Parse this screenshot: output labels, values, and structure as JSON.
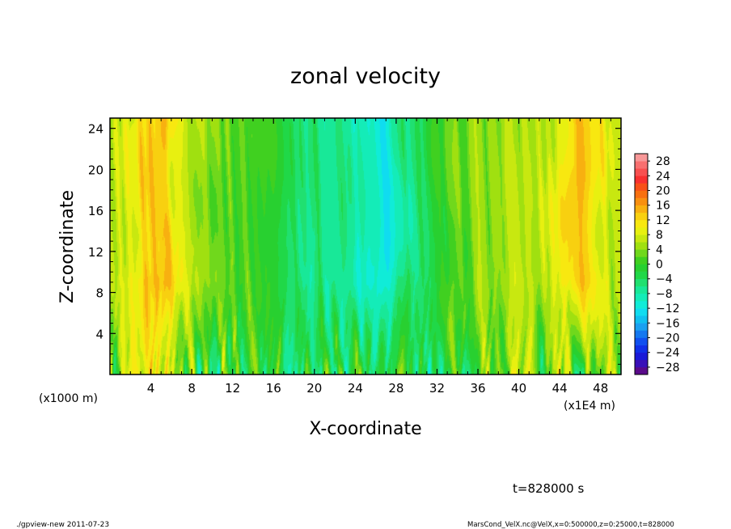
{
  "chart_data": {
    "type": "heatmap",
    "title": "zonal velocity",
    "xlabel": "X-coordinate",
    "ylabel": "Z-coordinate",
    "x_unit_left": "(x1000 m)",
    "x_unit_right": "(x1E4 m)",
    "xlim": [
      0,
      50
    ],
    "ylim": [
      0,
      25
    ],
    "x_ticks": [
      4,
      8,
      12,
      16,
      20,
      24,
      28,
      32,
      36,
      40,
      44,
      48
    ],
    "y_ticks": [
      4,
      8,
      12,
      16,
      20,
      24
    ],
    "colorbar": {
      "levels": [
        -30,
        -28,
        -26,
        -24,
        -22,
        -20,
        -18,
        -16,
        -14,
        -12,
        -10,
        -8,
        -6,
        -4,
        -2,
        0,
        2,
        4,
        6,
        8,
        10,
        12,
        14,
        16,
        18,
        20,
        22,
        24,
        26,
        28,
        30
      ],
      "labels": [
        28,
        24,
        20,
        16,
        12,
        8,
        4,
        0,
        -4,
        -8,
        -12,
        -16,
        -20,
        -24,
        -28
      ],
      "colors": [
        "#5a0a8a",
        "#3a10b8",
        "#1a1ad8",
        "#1030e8",
        "#1050f0",
        "#1478f0",
        "#1aa0f0",
        "#10c0f0",
        "#10dcf0",
        "#10ecd8",
        "#14ecb8",
        "#18e898",
        "#20e070",
        "#20d848",
        "#28d030",
        "#40d020",
        "#70d81c",
        "#a0e010",
        "#c8e810",
        "#e8f010",
        "#f8e810",
        "#f8d010",
        "#f8b010",
        "#f89010",
        "#f87010",
        "#f85018",
        "#f83030",
        "#f85050",
        "#f87070",
        "#f89898"
      ]
    },
    "field_description_x": [
      0,
      5,
      7,
      12,
      22,
      27,
      30,
      36,
      42,
      46,
      50
    ],
    "field_mean_upper_u": [
      6,
      14,
      8,
      2,
      -6,
      -12,
      -4,
      4,
      6,
      14,
      6
    ]
  },
  "annotations": {
    "time": "t=828000 s",
    "footer_left": "./gpview-new  2011-07-23",
    "footer_right": "MarsCond_VelX.nc@VelX,x=0:500000,z=0:25000,t=828000"
  }
}
